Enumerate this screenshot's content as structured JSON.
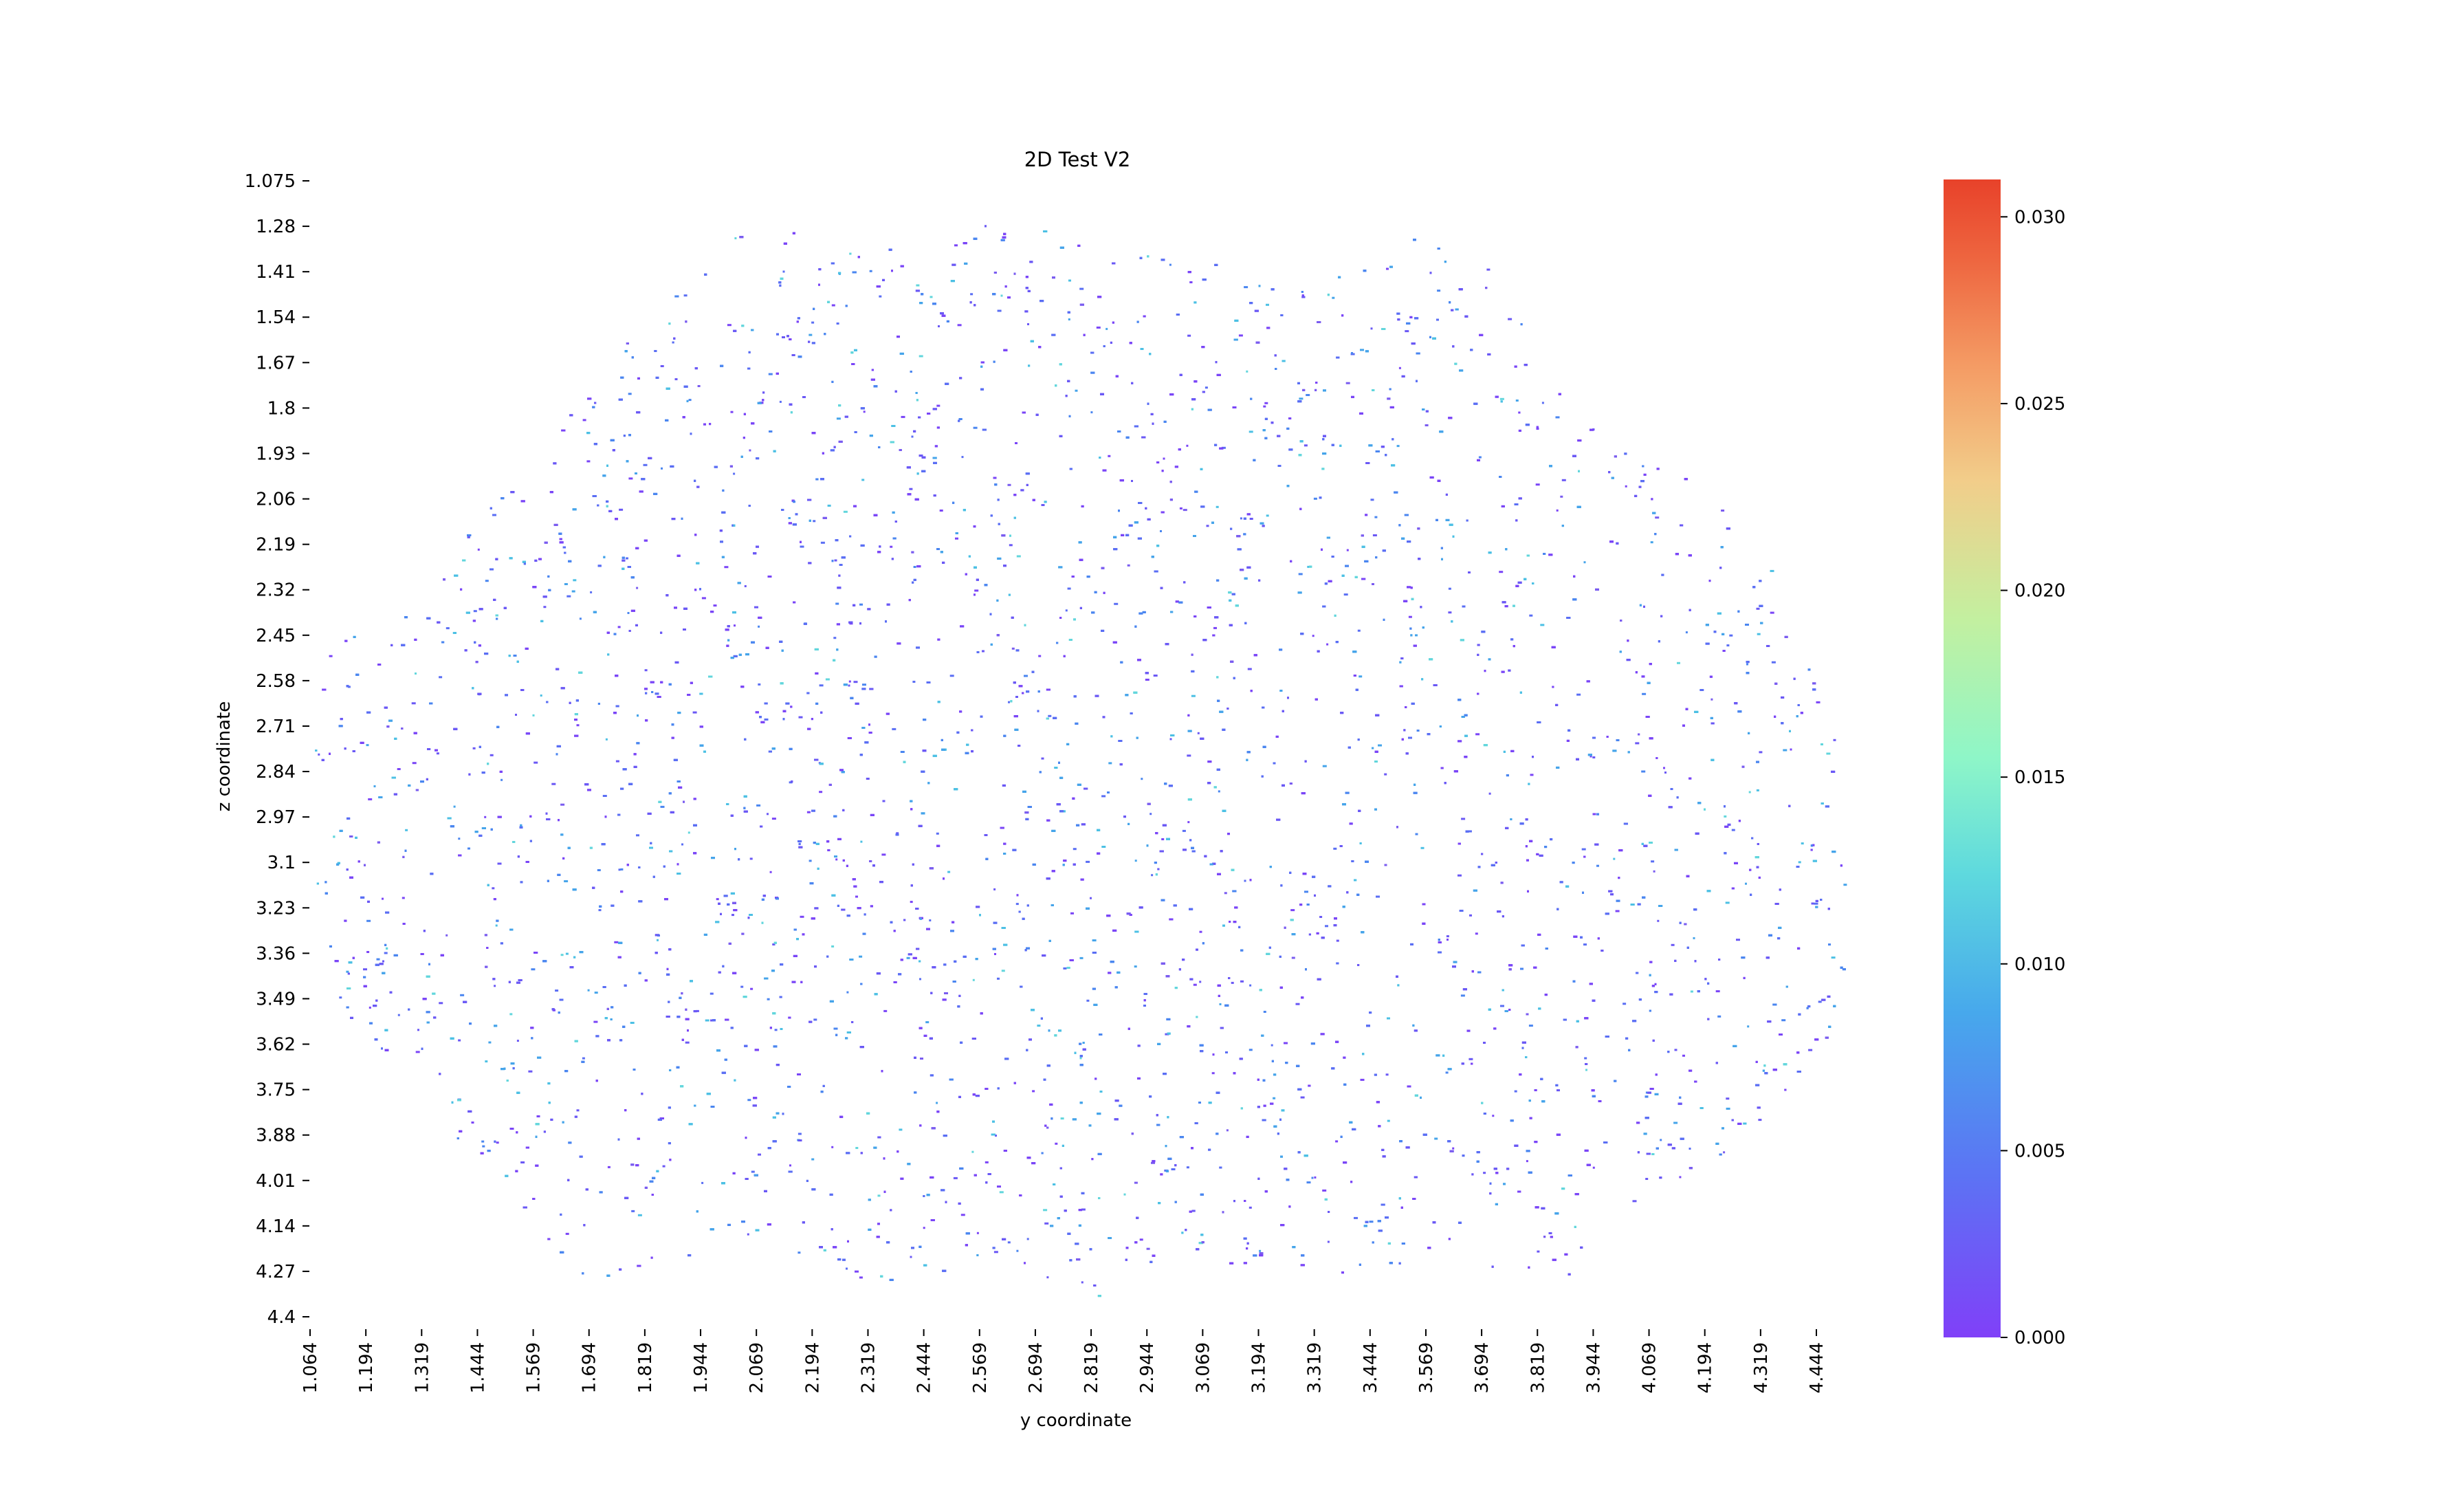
{
  "chart_data": {
    "type": "heatmap",
    "title": "2D Test V2",
    "xlabel": "y coordinate",
    "ylabel": "z coordinate",
    "x_tick_labels": [
      "1.064",
      "1.194",
      "1.319",
      "1.444",
      "1.569",
      "1.694",
      "1.819",
      "1.944",
      "2.069",
      "2.194",
      "2.319",
      "2.444",
      "2.569",
      "2.694",
      "2.819",
      "2.944",
      "3.069",
      "3.194",
      "3.319",
      "3.444",
      "3.569",
      "3.694",
      "3.819",
      "3.944",
      "4.069",
      "4.194",
      "4.319",
      "4.444"
    ],
    "y_tick_labels": [
      "1.075",
      "1.28",
      "1.41",
      "1.54",
      "1.67",
      "1.8",
      "1.93",
      "2.06",
      "2.19",
      "2.32",
      "2.45",
      "2.58",
      "2.71",
      "2.84",
      "2.97",
      "3.1",
      "3.23",
      "3.36",
      "3.49",
      "3.62",
      "3.75",
      "3.88",
      "4.01",
      "4.14",
      "4.27",
      "4.4"
    ],
    "xlim": [
      1.064,
      4.53
    ],
    "ylim": [
      1.075,
      4.4
    ],
    "colorbar": {
      "min": 0.0,
      "max": 0.031,
      "ticks": [
        0.0,
        0.005,
        0.01,
        0.015,
        0.02,
        0.025,
        0.03
      ],
      "tick_labels": [
        "0.000",
        "0.005",
        "0.010",
        "0.015",
        "0.020",
        "0.025",
        "0.030"
      ],
      "colormap": "rainbow",
      "colors": [
        "#8040f8",
        "#4f80f6",
        "#43bde6",
        "#66e2d8",
        "#9cf7bd",
        "#c7f3a0",
        "#f4c283",
        "#f48b5e",
        "#eb4b2c",
        "#e8422a"
      ]
    },
    "region": {
      "shape": "irregular octagon of sparse points",
      "y_extent": [
        1.064,
        4.53
      ],
      "z_extent": [
        1.13,
        4.4
      ],
      "typical_value": 0.003
    }
  }
}
